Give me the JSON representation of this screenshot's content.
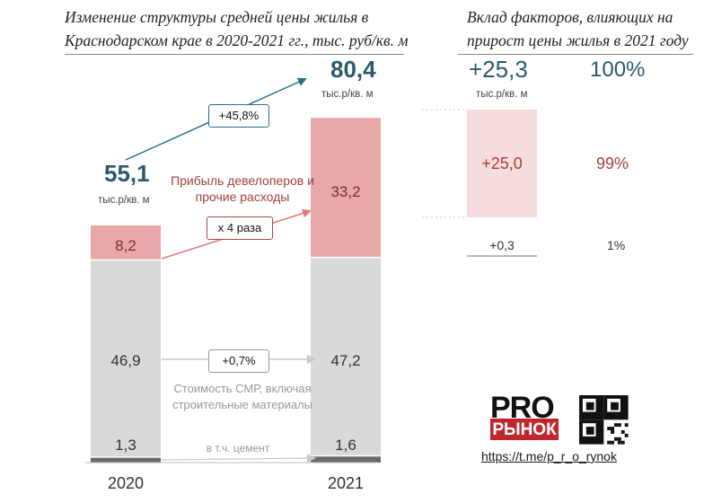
{
  "chart_data": [
    {
      "type": "bar",
      "stacked": true,
      "title": "Изменение структуры средней цены жилья в Краснодарском крае в 2020-2021 гг., тыс. руб/кв. м",
      "categories": [
        "2020",
        "2021"
      ],
      "series": [
        {
          "name": "в т.ч. цемент",
          "values": [
            1.3,
            1.6
          ],
          "color": "#6b6b6b"
        },
        {
          "name": "Стоимость СМР, включая строительные материалы",
          "values": [
            46.9,
            47.2
          ],
          "color": "#d9d9d9"
        },
        {
          "name": "Прибыль девелоперов и прочие расходы",
          "values": [
            8.2,
            33.2
          ],
          "color": "#e8a7a9"
        }
      ],
      "totals": [
        {
          "value": "55,1",
          "unit": "тыс.р/кв. м"
        },
        {
          "value": "80,4",
          "unit": "тыс.р/кв. м"
        }
      ],
      "segment_labels": {
        "2020": [
          "1,3",
          "46,9",
          "8,2"
        ],
        "2021": [
          "1,6",
          "47,2",
          "33,2"
        ]
      },
      "annotations": {
        "total_change": "+45,8%",
        "profit_change": "х 4 раза",
        "smr_change": "+0,7%",
        "profit_label": "Прибыль девелоперов и прочие расходы",
        "smr_label": "Стоимость СМР, включая строительные материалы",
        "cement_label": "в т.ч. цемент"
      }
    },
    {
      "type": "bar",
      "title": "Вклад факторов, влияющих на прирост цены жилья в 2021 году",
      "total": {
        "value": "+25,3",
        "unit": "тыс.р/кв. м",
        "share": "100%"
      },
      "factors": [
        {
          "name": "Прибыль девелоперов и прочие расходы",
          "value": 25.0,
          "label": "+25,0",
          "share": "99%"
        },
        {
          "name": "Стоимость СМР",
          "value": 0.3,
          "label": "+0,3",
          "share": "1%"
        }
      ]
    }
  ],
  "branding": {
    "logo_top": "PRO",
    "logo_bottom": "РЫНОК",
    "qr_label": "qr-code",
    "link": "https://t.me/p_r_o_rynok"
  },
  "colors": {
    "accent": "#2a5a6b",
    "profit": "#e8a7a9",
    "profit_light": "#f6dcdc",
    "smr": "#d9d9d9",
    "cement": "#6b6b6b",
    "red_text": "#a14040"
  }
}
